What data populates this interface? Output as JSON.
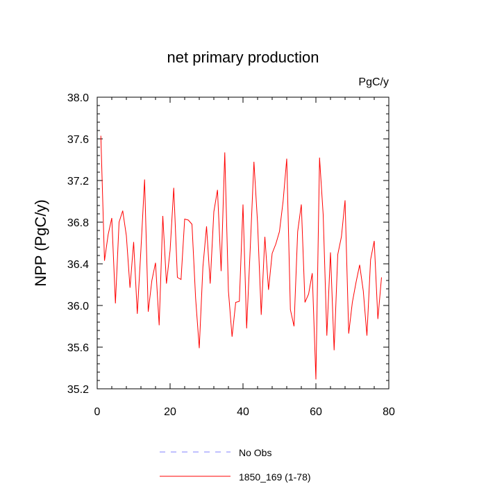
{
  "chart_data": {
    "type": "line",
    "title": "net primary production",
    "units_label": "PgC/y",
    "ylabel": "NPP  (PgC/y)",
    "xlabel": "",
    "xlim": [
      0,
      80
    ],
    "ylim": [
      35.2,
      38.0
    ],
    "x_ticks": [
      0,
      20,
      40,
      60,
      80
    ],
    "x_tick_labels": [
      "0",
      "20",
      "40",
      "60",
      "80"
    ],
    "y_ticks": [
      35.2,
      35.6,
      36.0,
      36.4,
      36.8,
      37.2,
      37.6,
      38.0
    ],
    "y_tick_labels": [
      "35.2",
      "35.6",
      "36.0",
      "36.4",
      "36.8",
      "37.2",
      "37.6",
      "38.0"
    ],
    "grid": false,
    "legend": [
      {
        "label": "No Obs",
        "color": "#8080ff",
        "style": "dashed"
      },
      {
        "label": "1850_169 (1-78)",
        "color": "#ff0000",
        "style": "solid"
      }
    ],
    "series": [
      {
        "name": "1850_169 (1-78)",
        "color": "#ff0000",
        "x": [
          1,
          2,
          3,
          4,
          5,
          6,
          7,
          8,
          9,
          10,
          11,
          12,
          13,
          14,
          15,
          16,
          17,
          18,
          19,
          20,
          21,
          22,
          23,
          24,
          25,
          26,
          27,
          28,
          29,
          30,
          31,
          32,
          33,
          34,
          35,
          36,
          37,
          38,
          39,
          40,
          41,
          42,
          43,
          44,
          45,
          46,
          47,
          48,
          49,
          50,
          51,
          52,
          53,
          54,
          55,
          56,
          57,
          58,
          59,
          60,
          61,
          62,
          63,
          64,
          65,
          66,
          67,
          68,
          69,
          70,
          71,
          72,
          73,
          74,
          75,
          76,
          77,
          78
        ],
        "values": [
          37.63,
          36.43,
          36.68,
          36.84,
          36.02,
          36.8,
          36.91,
          36.67,
          36.17,
          36.61,
          35.92,
          36.54,
          37.21,
          35.94,
          36.24,
          36.41,
          35.81,
          36.86,
          36.21,
          36.53,
          37.13,
          36.27,
          36.25,
          36.83,
          36.82,
          36.78,
          36.07,
          35.59,
          36.37,
          36.76,
          36.21,
          36.9,
          37.11,
          36.33,
          37.47,
          36.14,
          35.7,
          36.03,
          36.04,
          36.97,
          35.78,
          36.56,
          37.38,
          36.79,
          35.91,
          36.66,
          36.15,
          36.5,
          36.59,
          36.71,
          37.0,
          37.41,
          35.96,
          35.8,
          36.71,
          36.97,
          36.03,
          36.11,
          36.31,
          35.29,
          37.42,
          36.87,
          35.71,
          36.51,
          35.57,
          36.49,
          36.66,
          37.01,
          35.73,
          36.03,
          36.22,
          36.39,
          36.14,
          35.71,
          36.44,
          36.62,
          35.87,
          36.27
        ]
      }
    ]
  }
}
